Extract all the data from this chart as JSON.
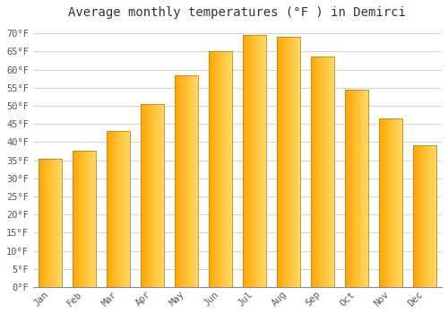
{
  "title": "Average monthly temperatures (°F ) in Demirci",
  "months": [
    "Jan",
    "Feb",
    "Mar",
    "Apr",
    "May",
    "Jun",
    "Jul",
    "Aug",
    "Sep",
    "Oct",
    "Nov",
    "Dec"
  ],
  "values": [
    35.5,
    37.5,
    43.0,
    50.5,
    58.5,
    65.0,
    69.5,
    69.0,
    63.5,
    54.5,
    46.5,
    39.0
  ],
  "bar_color_left": "#FFA500",
  "bar_color_right": "#FFD966",
  "bar_color_mid": "#FFBE00",
  "ylim": [
    0,
    72
  ],
  "yticks": [
    0,
    5,
    10,
    15,
    20,
    25,
    30,
    35,
    40,
    45,
    50,
    55,
    60,
    65,
    70
  ],
  "ytick_labels": [
    "0°F",
    "5°F",
    "10°F",
    "15°F",
    "20°F",
    "25°F",
    "30°F",
    "35°F",
    "40°F",
    "45°F",
    "50°F",
    "55°F",
    "60°F",
    "65°F",
    "70°F"
  ],
  "background_color": "#FFFFFF",
  "grid_color": "#D8D8D8",
  "title_fontsize": 10,
  "tick_fontsize": 7.5,
  "font_family": "monospace"
}
